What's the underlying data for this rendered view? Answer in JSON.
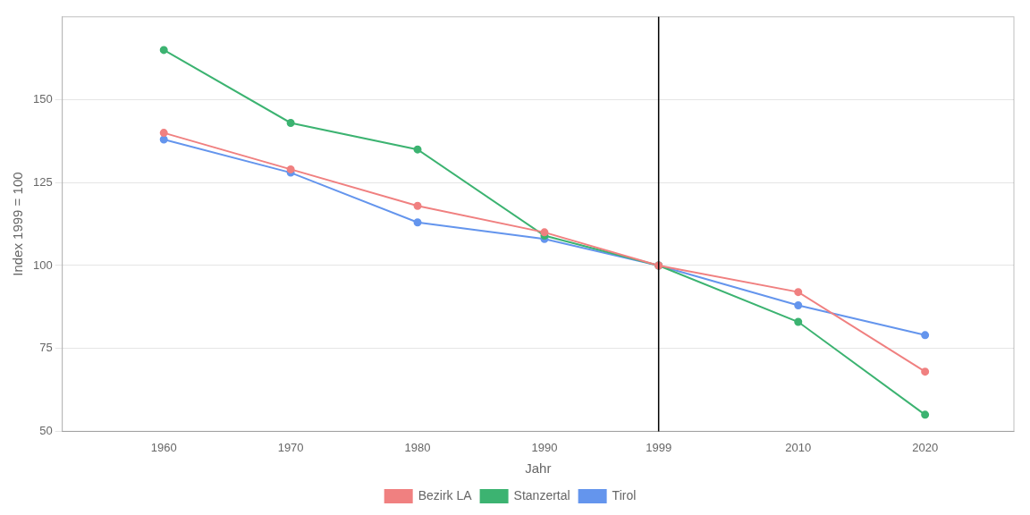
{
  "chart_data": {
    "type": "line",
    "x": [
      1960,
      1970,
      1980,
      1990,
      1999,
      2010,
      2020
    ],
    "series": [
      {
        "name": "Bezirk LA",
        "color": "#F08080",
        "values": [
          140,
          129,
          118,
          110,
          100,
          92,
          68
        ]
      },
      {
        "name": "Stanzertal",
        "color": "#3CB371",
        "values": [
          165,
          143,
          135,
          109,
          100,
          83,
          55
        ]
      },
      {
        "name": "Tirol",
        "color": "#6495ED",
        "values": [
          138,
          128,
          113,
          108,
          100,
          88,
          79
        ]
      }
    ],
    "xlabel": "Jahr",
    "ylabel": "Index 1999 = 100",
    "xlim": [
      1952,
      2027
    ],
    "ylim": [
      50,
      175
    ],
    "xticks": [
      1960,
      1970,
      1980,
      1990,
      1999,
      2010,
      2020
    ],
    "yticks": [
      50,
      75,
      100,
      125,
      150
    ],
    "grid": "y",
    "legend": "bottom",
    "marker": "circle",
    "vline": 1999
  }
}
